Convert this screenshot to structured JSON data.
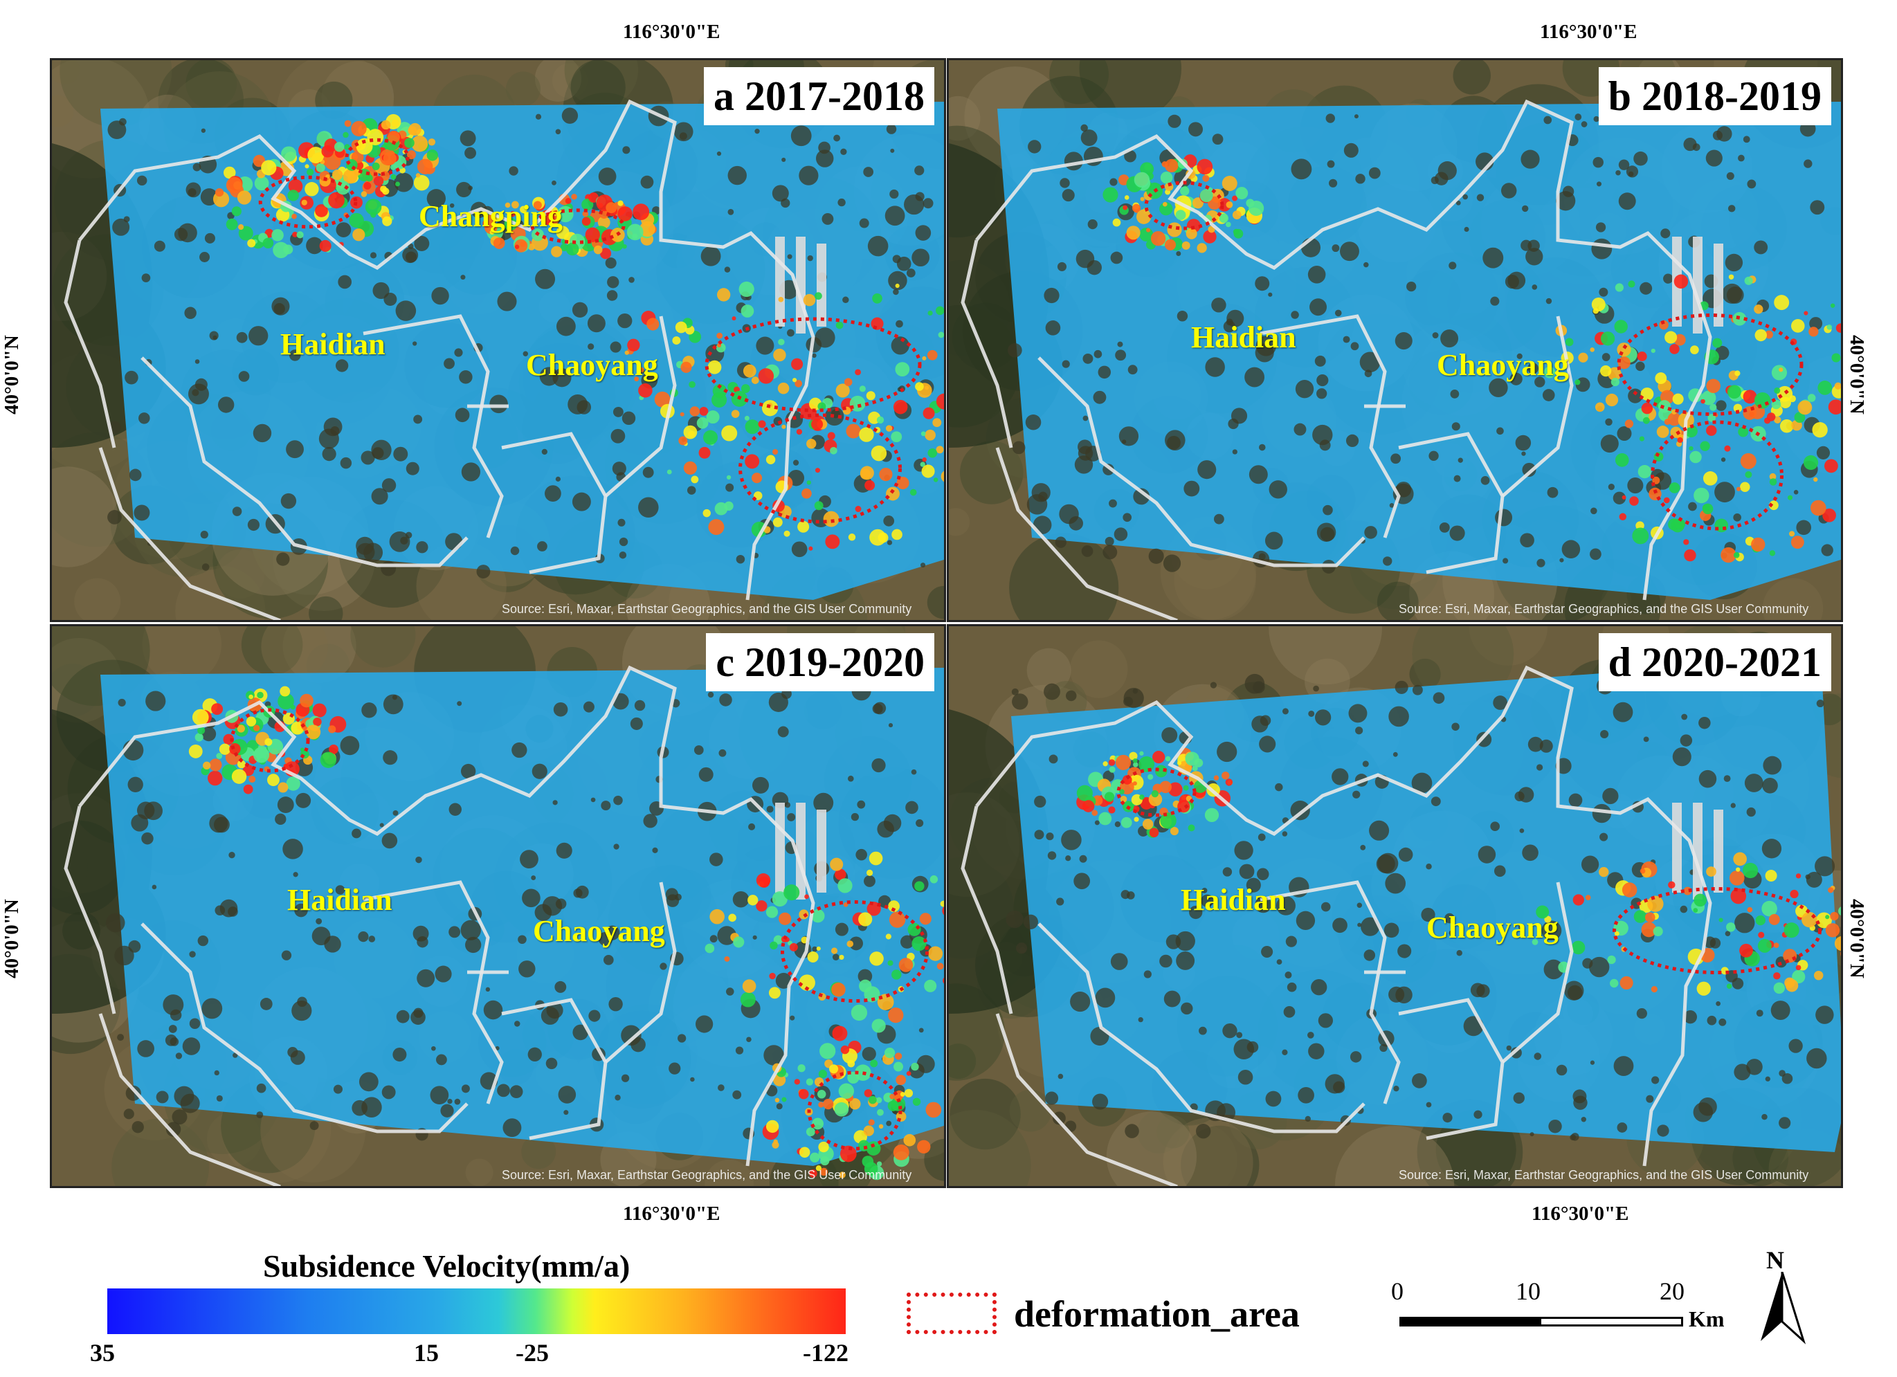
{
  "coordinates": {
    "longitude_top": "116°30'0\"E",
    "longitude_bottom": "116°30'0\"E",
    "latitude": "40°0'0\"N"
  },
  "panels": [
    {
      "id": "a",
      "title": "a 2017-2018",
      "labels": {
        "changping": "Changping",
        "haidian": "Haidian",
        "chaoyang": "Chaoyang"
      },
      "attribution": "Source: Esri, Maxar, Earthstar Geographics, and the GIS User Community"
    },
    {
      "id": "b",
      "title": "b 2018-2019",
      "labels": {
        "haidian": "Haidian",
        "chaoyang": "Chaoyang"
      },
      "attribution": "Source: Esri, Maxar, Earthstar Geographics, and the GIS User Community"
    },
    {
      "id": "c",
      "title": "c 2019-2020",
      "labels": {
        "haidian": "Haidian",
        "chaoyang": "Chaoyang"
      },
      "attribution": "Source: Esri, Maxar, Earthstar Geographics, and the GIS User Community"
    },
    {
      "id": "d",
      "title": "d 2020-2021",
      "labels": {
        "haidian": "Haidian",
        "chaoyang": "Chaoyang"
      },
      "attribution": "Source: Esri, Maxar, Earthstar Geographics, and the GIS User Community"
    }
  ],
  "legend": {
    "title": "Subsidence Velocity(mm/a)",
    "ticks": [
      "35",
      "15",
      "-25",
      "-122"
    ],
    "deformation_label": "deformation_area",
    "colors": {
      "max_uplift": "#1212ff",
      "stable": "#29a9e6",
      "mid": "#ffee1c",
      "max_subsidence": "#ff2518",
      "deformation_outline": "#e01818",
      "district_label": "#ffff00"
    }
  },
  "scale": {
    "ticks": [
      "0",
      "10",
      "20"
    ],
    "unit": "Km"
  },
  "north": {
    "label": "N"
  }
}
